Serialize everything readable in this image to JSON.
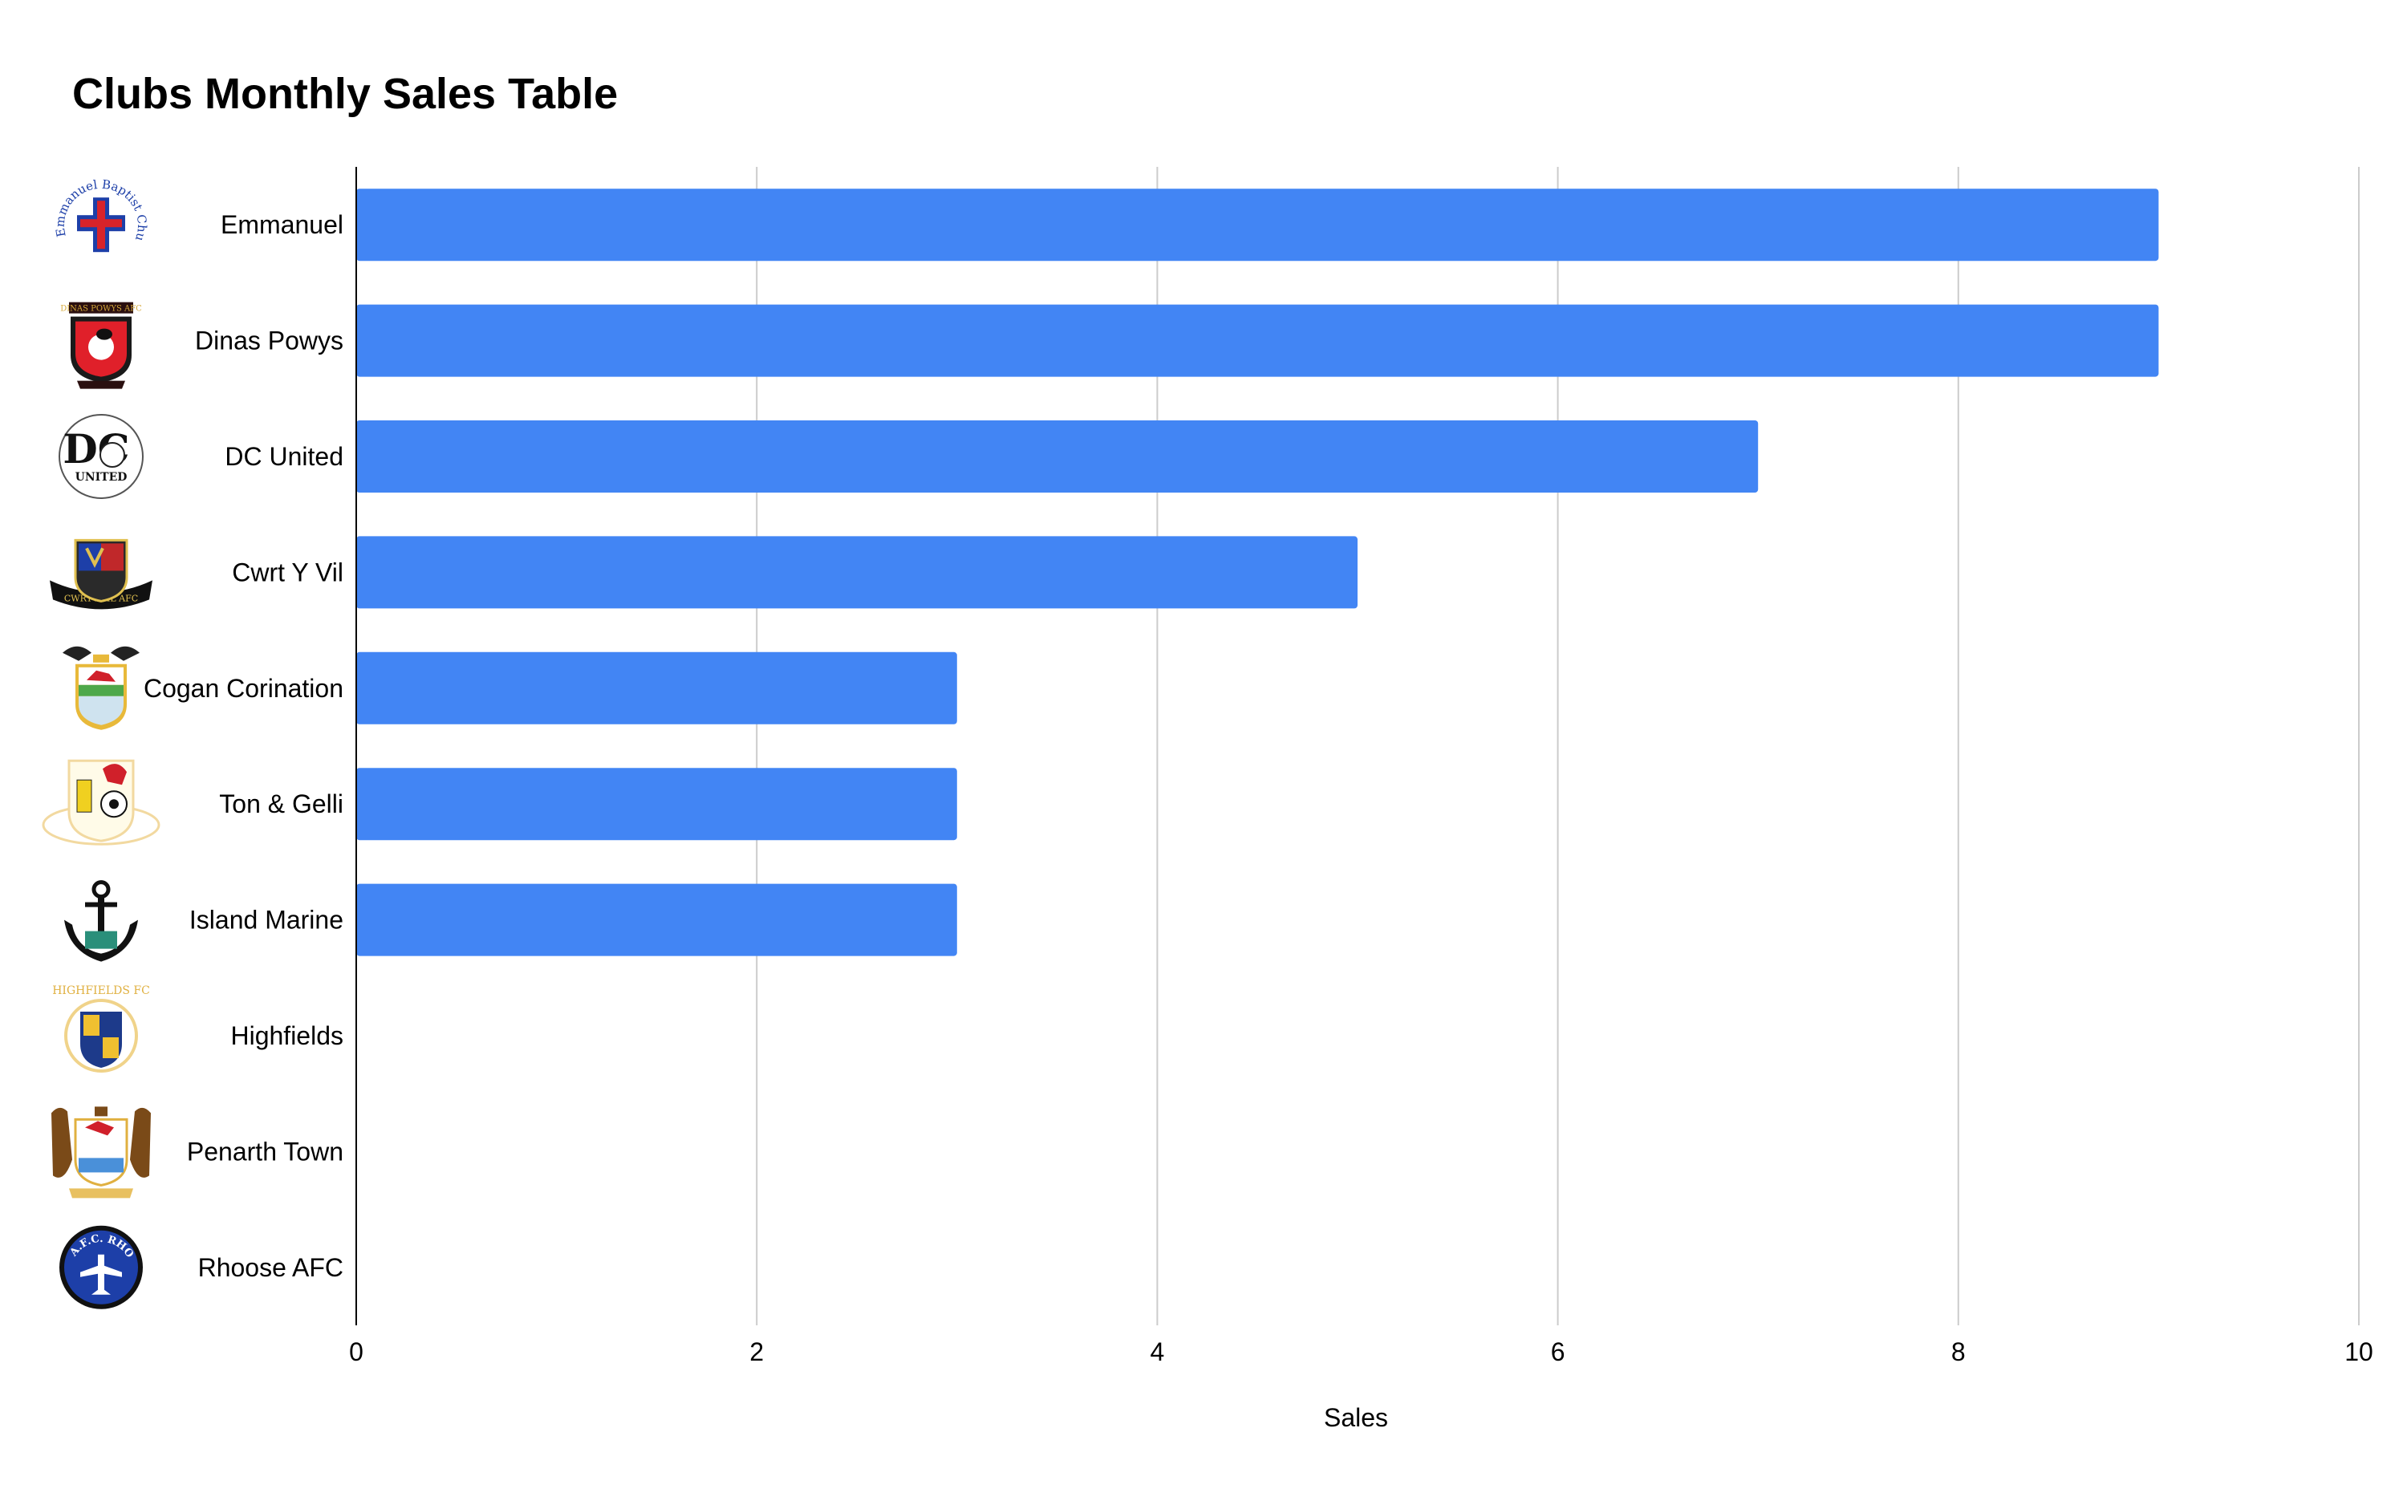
{
  "chart_data": {
    "type": "bar",
    "orientation": "horizontal",
    "title": "Clubs Monthly Sales Table",
    "xlabel": "Sales",
    "ylabel": "",
    "xlim": [
      0,
      10
    ],
    "ticks": [
      0,
      2,
      4,
      6,
      8,
      10
    ],
    "grid": true,
    "legend": "none",
    "bar_color": "#4285f4",
    "categories": [
      "Emmanuel",
      "Dinas Powys",
      "DC United",
      "Cwrt Y Vil",
      "Cogan Corination",
      "Ton & Gelli",
      "Island Marine",
      "Highfields",
      "Penarth Town",
      "Rhoose AFC"
    ],
    "values": [
      9,
      9,
      7,
      5,
      3,
      3,
      3,
      0,
      0,
      0
    ]
  },
  "logos": [
    {
      "club": "Emmanuel",
      "icon": "emmanuel-baptist-church-fc-crest",
      "text": "Emmanuel Baptist Church FC"
    },
    {
      "club": "Dinas Powys",
      "icon": "dinas-powys-afc-crest",
      "text": "DINAS POWYS AFC"
    },
    {
      "club": "DC United",
      "icon": "dc-united-crest",
      "text": "UNITED"
    },
    {
      "club": "Cwrt Y Vil",
      "icon": "cwrt-y-vil-afc-crest",
      "text": "CWRT-Y-VIL AFC"
    },
    {
      "club": "Cogan Corination",
      "icon": "cogan-coronation-crest",
      "text": ""
    },
    {
      "club": "Ton & Gelli",
      "icon": "ton-and-gelli-crest",
      "text": ""
    },
    {
      "club": "Island Marine",
      "icon": "island-marine-anchor-crest",
      "text": ""
    },
    {
      "club": "Highfields",
      "icon": "highfields-fc-crest",
      "text": "HIGHFIELDS FC"
    },
    {
      "club": "Penarth Town",
      "icon": "penarth-town-crest",
      "text": ""
    },
    {
      "club": "Rhoose AFC",
      "icon": "rhoose-afc-crest",
      "text": "A.F.C. RHOOSE"
    }
  ],
  "colors": {
    "bar": "#4285f4",
    "grid": "#cccccc",
    "axis": "#000000"
  }
}
